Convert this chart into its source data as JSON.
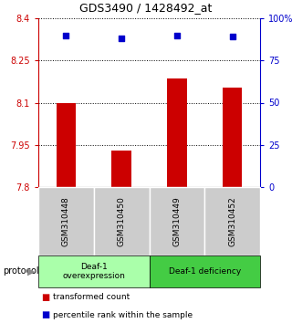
{
  "title": "GDS3490 / 1428492_at",
  "categories": [
    "GSM310448",
    "GSM310450",
    "GSM310449",
    "GSM310452"
  ],
  "bar_values": [
    8.1,
    7.93,
    8.185,
    8.155
  ],
  "bar_base": 7.8,
  "percentile_values": [
    90,
    88,
    90,
    89
  ],
  "ylim_left": [
    7.8,
    8.4
  ],
  "ylim_right": [
    0,
    100
  ],
  "yticks_left": [
    7.8,
    7.95,
    8.1,
    8.25,
    8.4
  ],
  "yticks_right": [
    0,
    25,
    50,
    75,
    100
  ],
  "ytick_labels_left": [
    "7.8",
    "7.95",
    "8.1",
    "8.25",
    "8.4"
  ],
  "ytick_labels_right": [
    "0",
    "25",
    "50",
    "75",
    "100%"
  ],
  "bar_color": "#cc0000",
  "dot_color": "#0000cc",
  "protocol_groups": [
    {
      "label": "Deaf-1\noverexpression",
      "color": "#aaffaa"
    },
    {
      "label": "Deaf-1 deficiency",
      "color": "#44cc44"
    }
  ],
  "legend_red_label": "transformed count",
  "legend_blue_label": "percentile rank within the sample",
  "protocol_label": "protocol",
  "left_axis_color": "#cc0000",
  "right_axis_color": "#0000cc"
}
